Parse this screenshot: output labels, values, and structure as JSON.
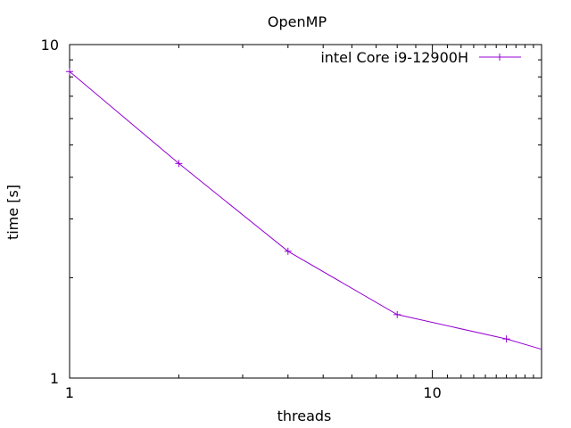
{
  "chart_data": {
    "type": "line",
    "title": "OpenMP",
    "xlabel": "threads",
    "ylabel": "time [s]",
    "x_scale": "log",
    "y_scale": "log",
    "xlim": [
      1,
      20
    ],
    "ylim": [
      1,
      10
    ],
    "x_ticks": [
      1,
      10
    ],
    "x_tick_labels": [
      "1",
      "10"
    ],
    "y_ticks": [
      1,
      10
    ],
    "y_tick_labels": [
      "1",
      "10"
    ],
    "grid": false,
    "legend_position": "top-right",
    "series": [
      {
        "name": "intel Core i9-12900H",
        "color": "#9400d3",
        "marker": "plus",
        "x": [
          1,
          2,
          4,
          8,
          16,
          20
        ],
        "y": [
          8.3,
          4.4,
          2.4,
          1.55,
          1.31,
          1.22
        ]
      }
    ]
  }
}
